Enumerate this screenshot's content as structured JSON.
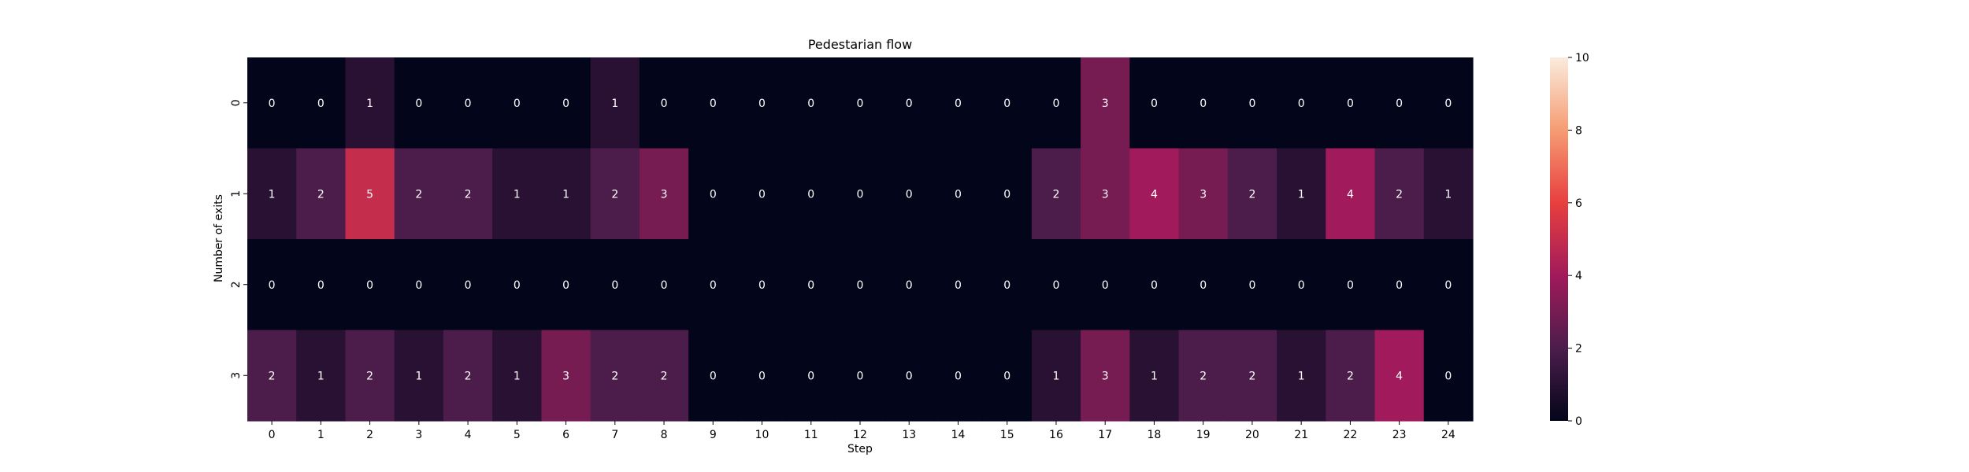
{
  "chart_data": {
    "type": "heatmap",
    "title": "Pedestarian flow",
    "xlabel": "Step",
    "ylabel": "Number of exits",
    "x_categories": [
      "0",
      "1",
      "2",
      "3",
      "4",
      "5",
      "6",
      "7",
      "8",
      "9",
      "10",
      "11",
      "12",
      "13",
      "14",
      "15",
      "16",
      "17",
      "18",
      "19",
      "20",
      "21",
      "22",
      "23",
      "24"
    ],
    "y_categories": [
      "0",
      "1",
      "2",
      "3"
    ],
    "values": [
      [
        0,
        0,
        1,
        0,
        0,
        0,
        0,
        1,
        0,
        0,
        0,
        0,
        0,
        0,
        0,
        0,
        0,
        3,
        0,
        0,
        0,
        0,
        0,
        0,
        0
      ],
      [
        1,
        2,
        5,
        2,
        2,
        1,
        1,
        2,
        3,
        0,
        0,
        0,
        0,
        0,
        0,
        0,
        2,
        3,
        4,
        3,
        2,
        1,
        4,
        2,
        1
      ],
      [
        0,
        0,
        0,
        0,
        0,
        0,
        0,
        0,
        0,
        0,
        0,
        0,
        0,
        0,
        0,
        0,
        0,
        0,
        0,
        0,
        0,
        0,
        0,
        0,
        0
      ],
      [
        2,
        1,
        2,
        1,
        2,
        1,
        3,
        2,
        2,
        0,
        0,
        0,
        0,
        0,
        0,
        0,
        1,
        3,
        1,
        2,
        2,
        1,
        2,
        4,
        0
      ]
    ],
    "colorbar": {
      "min": 0,
      "max": 10,
      "ticks": [
        "0",
        "2",
        "4",
        "6",
        "8",
        "10"
      ],
      "colormap": "rocket",
      "stops": [
        "#03051a",
        "#4c1d4b",
        "#a11a5b",
        "#e83f3f",
        "#f69c73",
        "#faebdd"
      ]
    },
    "annotate_colors": {
      "dark_text": "#262626",
      "light_text": "#ffffff"
    },
    "grid": false,
    "legend": "colorbar-right"
  }
}
